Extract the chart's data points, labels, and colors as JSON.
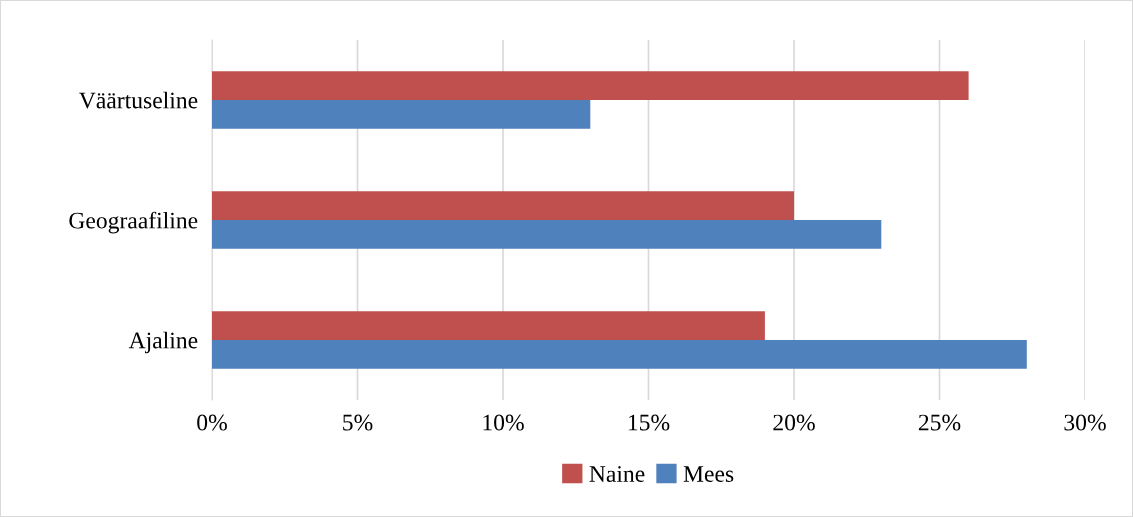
{
  "chart_data": {
    "type": "bar",
    "orientation": "horizontal",
    "categories": [
      "Väärtuseline",
      "Geograafiline",
      "Ajaline"
    ],
    "series": [
      {
        "name": "Naine",
        "color": "#c0504d",
        "values": [
          26,
          20,
          19
        ]
      },
      {
        "name": "Mees",
        "color": "#4f81bd",
        "values": [
          13,
          23,
          28
        ]
      }
    ],
    "xlim": [
      0,
      30
    ],
    "xticks": [
      {
        "value": 0,
        "label": "0%"
      },
      {
        "value": 5,
        "label": "5%"
      },
      {
        "value": 10,
        "label": "10%"
      },
      {
        "value": 15,
        "label": "15%"
      },
      {
        "value": 20,
        "label": "20%"
      },
      {
        "value": 25,
        "label": "25%"
      },
      {
        "value": 30,
        "label": "30%"
      }
    ],
    "grid": "x",
    "legend": "bottom"
  }
}
